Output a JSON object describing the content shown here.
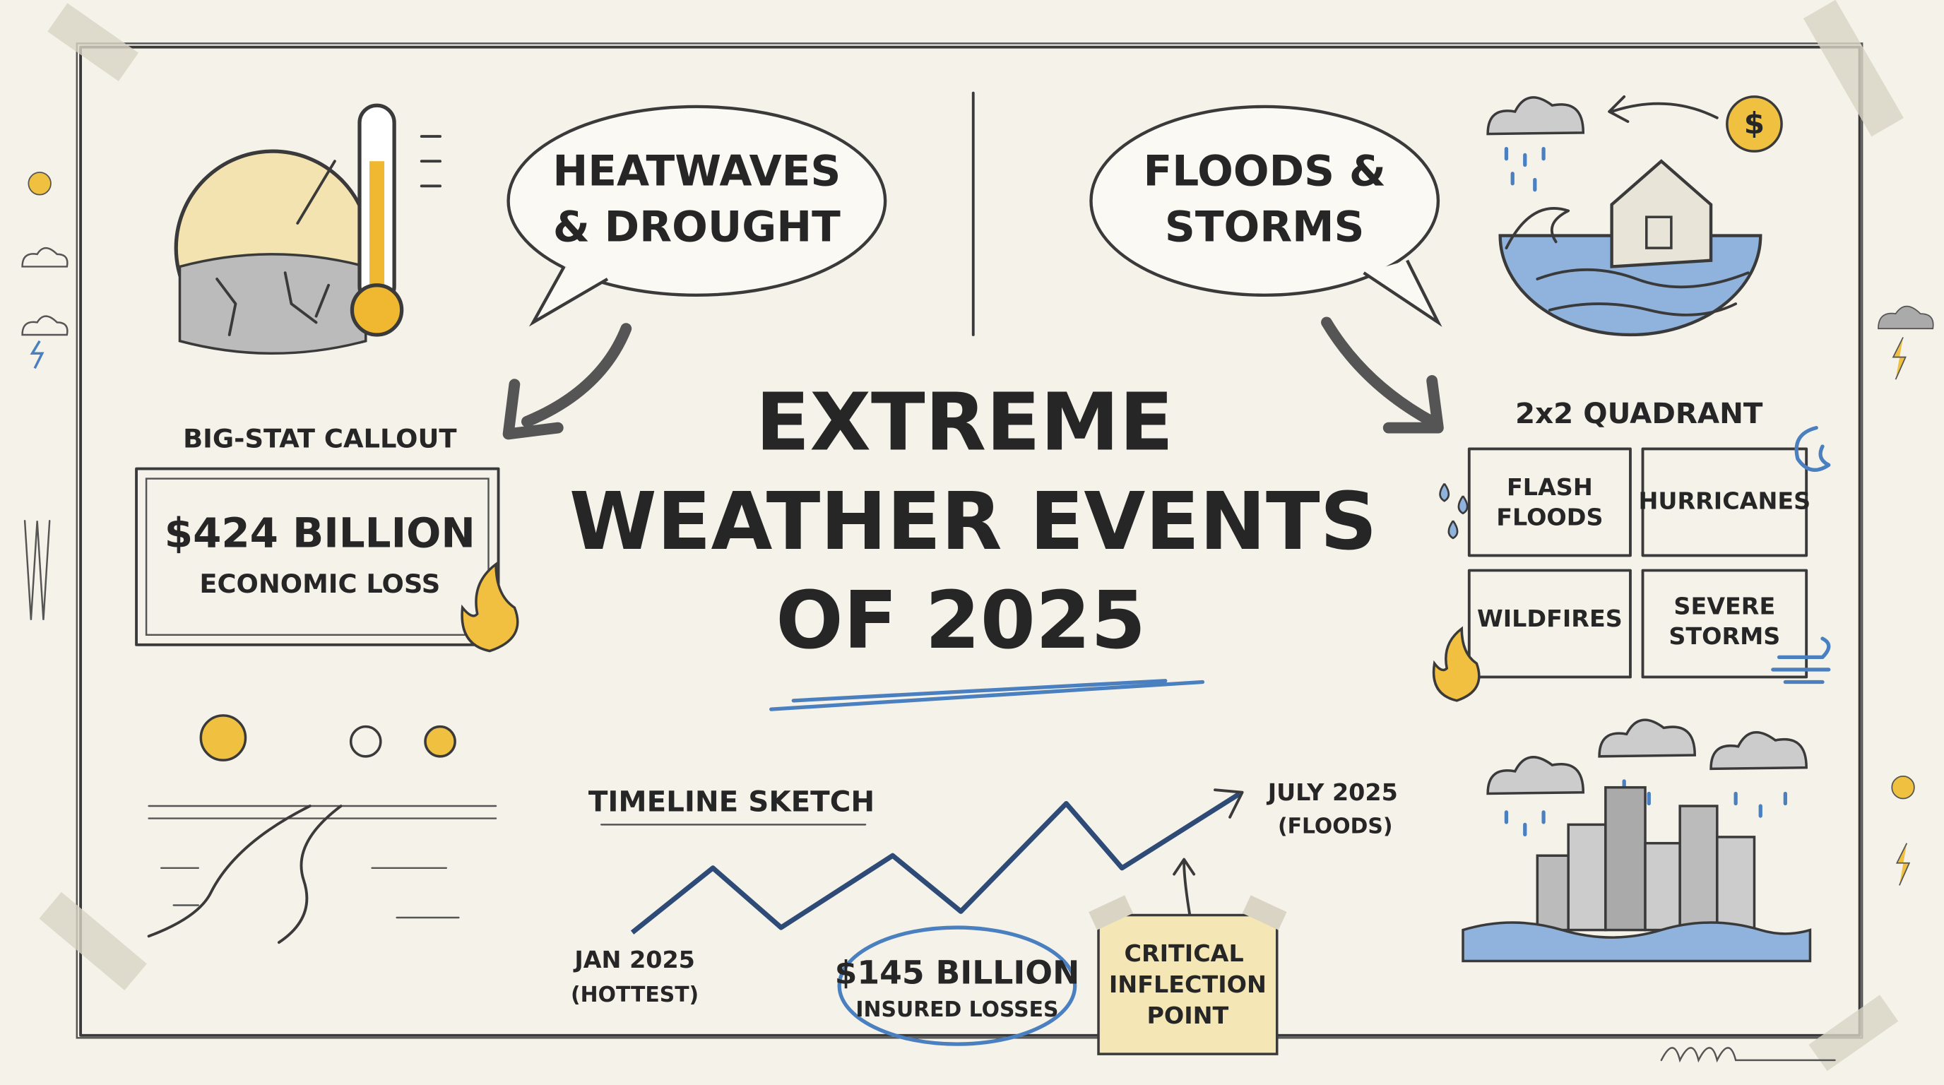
{
  "title": {
    "lines": [
      "EXTREME",
      "WEATHER EVENTS",
      "OF 2025"
    ]
  },
  "heat_bubble": {
    "lines": [
      "HEATWAVES",
      "& DROUGHT"
    ]
  },
  "flood_bubble": {
    "lines": [
      "FLOODS &",
      "STORMS"
    ]
  },
  "big_stat": {
    "label": "BIG-STAT CALLOUT",
    "value": "$424 BILLION",
    "caption": "ECONOMIC LOSS"
  },
  "quadrant": {
    "title": "2x2 QUADRANT",
    "cells": [
      [
        "FLASH",
        "FLOODS"
      ],
      [
        "HURRICANES"
      ],
      [
        "WILDFIRES"
      ],
      [
        "SEVERE",
        "STORMS"
      ]
    ]
  },
  "timeline": {
    "title": "TIMELINE SKETCH",
    "start": {
      "label": "JAN 2025",
      "note": "(HOTTEST)"
    },
    "end": {
      "label": "JULY 2025",
      "note": "(FLOODS)"
    },
    "callout": {
      "value": "$145 BILLION",
      "caption": "INSURED LOSSES"
    },
    "sticky_note": [
      "CRITICAL",
      "INFLECTION",
      "POINT"
    ]
  },
  "icons": {
    "currency": "$"
  }
}
